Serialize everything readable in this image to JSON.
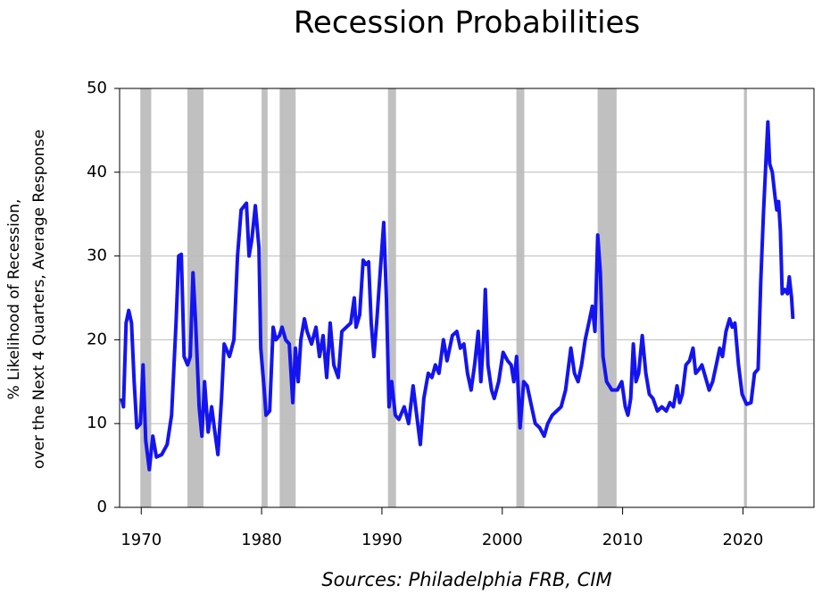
{
  "chart_data": {
    "type": "line",
    "title": "Recession Probabilities",
    "ylabel": [
      "% Likelihood of Recession,",
      "over the Next 4 Quarters, Average Response"
    ],
    "source": "Sources:  Philadelphia FRB, CIM",
    "xlim": [
      1968.2,
      2025.9
    ],
    "xticks": [
      1970,
      1980,
      1990,
      2000,
      2010,
      2020
    ],
    "ylim": [
      0,
      50
    ],
    "yticks": [
      0,
      10,
      20,
      30,
      40,
      50
    ],
    "grid": true,
    "recession_color": "#c0c0c0",
    "recessions": [
      [
        1969.92,
        1970.83
      ],
      [
        1973.83,
        1975.17
      ],
      [
        1980.0,
        1980.5
      ],
      [
        1981.5,
        1982.83
      ],
      [
        1990.5,
        1991.17
      ],
      [
        2001.17,
        2001.83
      ],
      [
        2007.92,
        2009.5
      ],
      [
        2020.08,
        2020.33
      ]
    ],
    "x": [
      1968.37,
      1968.52,
      1968.74,
      1968.96,
      1969.19,
      1969.41,
      1969.63,
      1969.93,
      1970.15,
      1970.37,
      1970.67,
      1970.96,
      1971.26,
      1971.7,
      1972.15,
      1972.52,
      1972.89,
      1973.11,
      1973.33,
      1973.56,
      1973.85,
      1974.07,
      1974.3,
      1974.52,
      1974.81,
      1975.04,
      1975.26,
      1975.56,
      1975.85,
      1976.07,
      1976.37,
      1976.67,
      1976.89,
      1977.33,
      1977.7,
      1978.0,
      1978.3,
      1978.74,
      1978.96,
      1979.19,
      1979.48,
      1979.78,
      1979.93,
      1980.22,
      1980.37,
      1980.67,
      1980.96,
      1981.19,
      1981.48,
      1981.7,
      1982.0,
      1982.3,
      1982.59,
      1982.81,
      1983.04,
      1983.26,
      1983.56,
      1983.78,
      1984.15,
      1984.52,
      1984.81,
      1985.11,
      1985.41,
      1985.7,
      1986.0,
      1986.37,
      1986.67,
      1987.04,
      1987.41,
      1987.7,
      1987.85,
      1988.15,
      1988.44,
      1988.67,
      1988.89,
      1989.11,
      1989.33,
      1989.56,
      1989.85,
      1990.15,
      1990.37,
      1990.59,
      1990.81,
      1991.11,
      1991.41,
      1991.85,
      1992.22,
      1992.59,
      1992.89,
      1993.19,
      1993.48,
      1993.85,
      1994.15,
      1994.44,
      1994.74,
      1995.11,
      1995.41,
      1995.85,
      1996.22,
      1996.52,
      1996.81,
      1997.11,
      1997.41,
      1997.7,
      1998.0,
      1998.22,
      1998.44,
      1998.59,
      1998.81,
      1999.11,
      1999.33,
      1999.7,
      2000.07,
      2000.44,
      2000.74,
      2000.96,
      2001.19,
      2001.48,
      2001.78,
      2002.07,
      2002.44,
      2002.74,
      2003.11,
      2003.48,
      2003.78,
      2004.15,
      2004.52,
      2004.89,
      2005.26,
      2005.7,
      2006.0,
      2006.3,
      2006.59,
      2006.89,
      2007.19,
      2007.48,
      2007.7,
      2007.93,
      2008.15,
      2008.37,
      2008.67,
      2009.11,
      2009.56,
      2009.93,
      2010.22,
      2010.44,
      2010.67,
      2010.89,
      2011.11,
      2011.33,
      2011.63,
      2011.93,
      2012.22,
      2012.52,
      2012.89,
      2013.26,
      2013.63,
      2013.93,
      2014.22,
      2014.52,
      2014.74,
      2014.96,
      2015.26,
      2015.56,
      2015.85,
      2016.07,
      2016.37,
      2016.59,
      2016.89,
      2017.19,
      2017.48,
      2017.78,
      2018.07,
      2018.3,
      2018.59,
      2018.89,
      2019.11,
      2019.33,
      2019.63,
      2019.93,
      2020.3,
      2020.67,
      2020.96,
      2021.26,
      2021.48,
      2021.7,
      2021.93,
      2022.07,
      2022.22,
      2022.44,
      2022.67,
      2022.81,
      2022.96,
      2023.11,
      2023.26,
      2023.48,
      2023.7,
      2023.85,
      2024.04,
      2024.15
    ],
    "series": [
      {
        "name": "Recession probability",
        "color": "#1414f0",
        "values": [
          13,
          12,
          22,
          23.5,
          22,
          15,
          9.5,
          10,
          17,
          8,
          4.5,
          8.5,
          6,
          6.3,
          7.5,
          11,
          22,
          30,
          30.2,
          18,
          17,
          18,
          28,
          22,
          12,
          8.5,
          15,
          9,
          12,
          9.5,
          6.3,
          13,
          19.5,
          18,
          20,
          30,
          35.5,
          36.3,
          30,
          32,
          36,
          31,
          19,
          14,
          11,
          11.5,
          21.5,
          20,
          20.5,
          21.5,
          20,
          19.5,
          12.5,
          19,
          15,
          20,
          22.5,
          21,
          19.5,
          21.5,
          18,
          20.5,
          15.5,
          22,
          17,
          15.5,
          21,
          21.5,
          22,
          25,
          21.5,
          23,
          29.5,
          29,
          29.3,
          22,
          18,
          22,
          28,
          34,
          25,
          12,
          15,
          11,
          10.5,
          12,
          10,
          14.5,
          11,
          7.5,
          13,
          16,
          15.5,
          17,
          16,
          20,
          17.5,
          20.5,
          21,
          19,
          19.5,
          16,
          14,
          17,
          21,
          15,
          20,
          26,
          17,
          14,
          13,
          15,
          18.5,
          17.5,
          17,
          15,
          18,
          9.5,
          15,
          14.5,
          12,
          10,
          9.5,
          8.5,
          10,
          11,
          11.5,
          12,
          14,
          19,
          16,
          15,
          17,
          20,
          22,
          24,
          21,
          32.5,
          28,
          18,
          15,
          14,
          14,
          15,
          12,
          11,
          13,
          19.5,
          15,
          16,
          20.5,
          16,
          13.5,
          13,
          11.5,
          12,
          11.5,
          12.5,
          12,
          14.5,
          12.5,
          13.5,
          17,
          17.5,
          19,
          16,
          16.5,
          17,
          15.5,
          14,
          15,
          17,
          19,
          18,
          21,
          22.5,
          21.5,
          22,
          17,
          13.5,
          12.3,
          12.5,
          16,
          16.5,
          27,
          35,
          42,
          46,
          41,
          40,
          37,
          35.5,
          36.5,
          33,
          25.5,
          26,
          25.5,
          27.5,
          25,
          22.5
        ]
      }
    ]
  }
}
